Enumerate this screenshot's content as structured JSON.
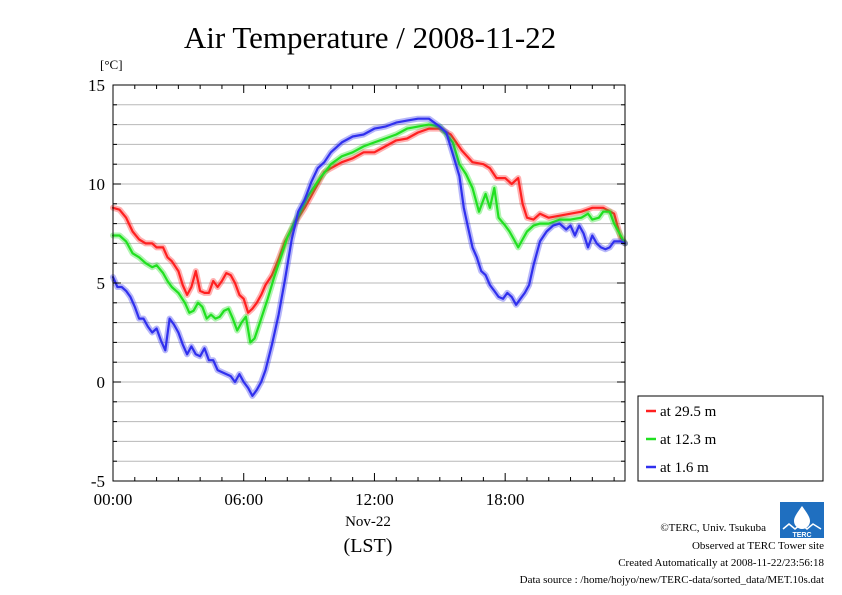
{
  "chart_data": {
    "type": "line",
    "title": "Air Temperature / 2008-11-22",
    "ylabel": "[°C]",
    "xlabel": "(LST)",
    "x_date_label": "Nov-22",
    "x_unit": "hours",
    "xlim": [
      0,
      23.5
    ],
    "ylim": [
      -5,
      15
    ],
    "x_ticks": [
      0,
      6,
      12,
      18
    ],
    "x_tick_labels": [
      "00:00",
      "06:00",
      "12:00",
      "18:00"
    ],
    "y_ticks": [
      -5,
      0,
      5,
      10,
      15
    ],
    "y_tick_labels": [
      "-5",
      "0",
      "5",
      "10",
      "15"
    ],
    "grid": true,
    "legend_position": "bottom-right outside",
    "series": [
      {
        "name": "at 29.5 m",
        "color": "#ff2020",
        "points": [
          [
            0,
            8.8
          ],
          [
            0.3,
            8.7
          ],
          [
            0.6,
            8.3
          ],
          [
            0.9,
            7.6
          ],
          [
            1.2,
            7.2
          ],
          [
            1.5,
            7.0
          ],
          [
            1.8,
            7.0
          ],
          [
            2.0,
            6.8
          ],
          [
            2.3,
            6.8
          ],
          [
            2.5,
            6.3
          ],
          [
            2.7,
            6.1
          ],
          [
            3.0,
            5.6
          ],
          [
            3.2,
            4.9
          ],
          [
            3.4,
            4.4
          ],
          [
            3.6,
            4.8
          ],
          [
            3.8,
            5.6
          ],
          [
            4.0,
            4.6
          ],
          [
            4.2,
            4.5
          ],
          [
            4.4,
            4.5
          ],
          [
            4.6,
            5.1
          ],
          [
            4.8,
            4.8
          ],
          [
            5.0,
            5.1
          ],
          [
            5.2,
            5.5
          ],
          [
            5.4,
            5.4
          ],
          [
            5.6,
            5.0
          ],
          [
            5.8,
            4.4
          ],
          [
            6.0,
            4.2
          ],
          [
            6.2,
            3.5
          ],
          [
            6.4,
            3.7
          ],
          [
            6.6,
            4.0
          ],
          [
            6.8,
            4.4
          ],
          [
            7.0,
            4.9
          ],
          [
            7.3,
            5.4
          ],
          [
            7.6,
            6.2
          ],
          [
            7.9,
            7.1
          ],
          [
            8.2,
            7.7
          ],
          [
            8.5,
            8.3
          ],
          [
            8.8,
            8.8
          ],
          [
            9.1,
            9.4
          ],
          [
            9.4,
            10.0
          ],
          [
            9.7,
            10.6
          ],
          [
            10.0,
            10.8
          ],
          [
            10.5,
            11.1
          ],
          [
            11.0,
            11.3
          ],
          [
            11.5,
            11.6
          ],
          [
            12.0,
            11.6
          ],
          [
            12.5,
            11.9
          ],
          [
            13.0,
            12.2
          ],
          [
            13.5,
            12.3
          ],
          [
            14.0,
            12.6
          ],
          [
            14.5,
            12.8
          ],
          [
            15.0,
            12.8
          ],
          [
            15.5,
            12.5
          ],
          [
            16.0,
            11.7
          ],
          [
            16.5,
            11.1
          ],
          [
            17.0,
            11.0
          ],
          [
            17.3,
            10.8
          ],
          [
            17.6,
            10.3
          ],
          [
            18.0,
            10.3
          ],
          [
            18.3,
            10.0
          ],
          [
            18.6,
            10.3
          ],
          [
            18.8,
            9.0
          ],
          [
            19.0,
            8.3
          ],
          [
            19.3,
            8.2
          ],
          [
            19.6,
            8.5
          ],
          [
            20.0,
            8.3
          ],
          [
            20.5,
            8.4
          ],
          [
            21.0,
            8.5
          ],
          [
            21.5,
            8.6
          ],
          [
            22.0,
            8.8
          ],
          [
            22.5,
            8.8
          ],
          [
            23.0,
            8.5
          ],
          [
            23.3,
            7.3
          ],
          [
            23.5,
            7.0
          ]
        ]
      },
      {
        "name": "at 12.3 m",
        "color": "#20e020",
        "points": [
          [
            0,
            7.4
          ],
          [
            0.3,
            7.4
          ],
          [
            0.6,
            7.1
          ],
          [
            0.9,
            6.5
          ],
          [
            1.2,
            6.3
          ],
          [
            1.5,
            6.0
          ],
          [
            1.8,
            5.8
          ],
          [
            2.0,
            5.9
          ],
          [
            2.3,
            5.5
          ],
          [
            2.5,
            5.1
          ],
          [
            2.7,
            4.8
          ],
          [
            3.0,
            4.5
          ],
          [
            3.3,
            4.0
          ],
          [
            3.5,
            3.5
          ],
          [
            3.7,
            3.6
          ],
          [
            3.9,
            4.0
          ],
          [
            4.1,
            3.8
          ],
          [
            4.3,
            3.2
          ],
          [
            4.5,
            3.4
          ],
          [
            4.7,
            3.2
          ],
          [
            4.9,
            3.3
          ],
          [
            5.1,
            3.6
          ],
          [
            5.3,
            3.7
          ],
          [
            5.5,
            3.2
          ],
          [
            5.7,
            2.6
          ],
          [
            5.9,
            3.0
          ],
          [
            6.1,
            3.3
          ],
          [
            6.3,
            2.0
          ],
          [
            6.5,
            2.2
          ],
          [
            6.8,
            3.2
          ],
          [
            7.1,
            4.2
          ],
          [
            7.4,
            5.3
          ],
          [
            7.7,
            6.3
          ],
          [
            8.0,
            7.3
          ],
          [
            8.3,
            8.0
          ],
          [
            8.6,
            8.6
          ],
          [
            8.9,
            9.3
          ],
          [
            9.2,
            9.8
          ],
          [
            9.5,
            10.3
          ],
          [
            9.8,
            10.7
          ],
          [
            10.0,
            11.0
          ],
          [
            10.5,
            11.4
          ],
          [
            11.0,
            11.6
          ],
          [
            11.5,
            11.9
          ],
          [
            12.0,
            12.1
          ],
          [
            12.5,
            12.3
          ],
          [
            13.0,
            12.5
          ],
          [
            13.5,
            12.8
          ],
          [
            14.0,
            12.9
          ],
          [
            14.5,
            13.0
          ],
          [
            15.0,
            12.9
          ],
          [
            15.3,
            12.5
          ],
          [
            15.6,
            12.1
          ],
          [
            15.9,
            11.0
          ],
          [
            16.2,
            10.5
          ],
          [
            16.5,
            9.8
          ],
          [
            16.8,
            8.6
          ],
          [
            17.1,
            9.5
          ],
          [
            17.3,
            8.8
          ],
          [
            17.5,
            9.8
          ],
          [
            17.7,
            8.3
          ],
          [
            18.0,
            7.9
          ],
          [
            18.2,
            7.6
          ],
          [
            18.4,
            7.2
          ],
          [
            18.6,
            6.8
          ],
          [
            18.8,
            7.2
          ],
          [
            19.0,
            7.6
          ],
          [
            19.3,
            7.9
          ],
          [
            19.6,
            8.0
          ],
          [
            20.0,
            8.0
          ],
          [
            20.5,
            8.2
          ],
          [
            21.0,
            8.2
          ],
          [
            21.5,
            8.3
          ],
          [
            21.8,
            8.5
          ],
          [
            22.0,
            8.2
          ],
          [
            22.3,
            8.3
          ],
          [
            22.5,
            8.6
          ],
          [
            22.8,
            8.6
          ],
          [
            23.0,
            8.0
          ],
          [
            23.3,
            7.4
          ],
          [
            23.5,
            7.0
          ]
        ]
      },
      {
        "name": "at 1.6 m",
        "color": "#3030ee",
        "points": [
          [
            0,
            5.3
          ],
          [
            0.2,
            4.8
          ],
          [
            0.4,
            4.8
          ],
          [
            0.6,
            4.6
          ],
          [
            0.8,
            4.3
          ],
          [
            1.0,
            3.8
          ],
          [
            1.2,
            3.2
          ],
          [
            1.4,
            3.2
          ],
          [
            1.6,
            2.8
          ],
          [
            1.8,
            2.5
          ],
          [
            2.0,
            2.7
          ],
          [
            2.2,
            2.1
          ],
          [
            2.4,
            1.6
          ],
          [
            2.6,
            3.2
          ],
          [
            2.8,
            2.9
          ],
          [
            3.0,
            2.5
          ],
          [
            3.2,
            1.9
          ],
          [
            3.4,
            1.4
          ],
          [
            3.6,
            1.8
          ],
          [
            3.8,
            1.4
          ],
          [
            4.0,
            1.3
          ],
          [
            4.2,
            1.7
          ],
          [
            4.4,
            1.1
          ],
          [
            4.6,
            1.1
          ],
          [
            4.8,
            0.6
          ],
          [
            5.0,
            0.5
          ],
          [
            5.2,
            0.4
          ],
          [
            5.4,
            0.3
          ],
          [
            5.6,
            0.0
          ],
          [
            5.8,
            0.4
          ],
          [
            6.0,
            0.0
          ],
          [
            6.2,
            -0.3
          ],
          [
            6.4,
            -0.7
          ],
          [
            6.6,
            -0.4
          ],
          [
            6.8,
            0.0
          ],
          [
            7.0,
            0.6
          ],
          [
            7.3,
            1.9
          ],
          [
            7.6,
            3.4
          ],
          [
            7.9,
            5.2
          ],
          [
            8.2,
            7.2
          ],
          [
            8.5,
            8.6
          ],
          [
            8.8,
            9.2
          ],
          [
            9.1,
            10.1
          ],
          [
            9.4,
            10.8
          ],
          [
            9.7,
            11.1
          ],
          [
            10.0,
            11.6
          ],
          [
            10.5,
            12.1
          ],
          [
            11.0,
            12.4
          ],
          [
            11.5,
            12.5
          ],
          [
            12.0,
            12.8
          ],
          [
            12.5,
            12.9
          ],
          [
            13.0,
            13.1
          ],
          [
            13.5,
            13.2
          ],
          [
            14.0,
            13.3
          ],
          [
            14.5,
            13.3
          ],
          [
            15.0,
            12.9
          ],
          [
            15.3,
            12.6
          ],
          [
            15.6,
            11.5
          ],
          [
            15.9,
            10.4
          ],
          [
            16.1,
            8.8
          ],
          [
            16.3,
            7.8
          ],
          [
            16.5,
            6.8
          ],
          [
            16.7,
            6.3
          ],
          [
            16.9,
            5.6
          ],
          [
            17.1,
            5.4
          ],
          [
            17.3,
            4.9
          ],
          [
            17.5,
            4.6
          ],
          [
            17.7,
            4.3
          ],
          [
            17.9,
            4.2
          ],
          [
            18.1,
            4.5
          ],
          [
            18.3,
            4.3
          ],
          [
            18.5,
            3.9
          ],
          [
            18.7,
            4.2
          ],
          [
            18.9,
            4.5
          ],
          [
            19.1,
            4.9
          ],
          [
            19.3,
            5.9
          ],
          [
            19.6,
            7.1
          ],
          [
            19.9,
            7.6
          ],
          [
            20.2,
            7.9
          ],
          [
            20.5,
            8.0
          ],
          [
            20.8,
            7.7
          ],
          [
            21.0,
            7.9
          ],
          [
            21.2,
            7.4
          ],
          [
            21.4,
            7.9
          ],
          [
            21.6,
            7.5
          ],
          [
            21.8,
            6.8
          ],
          [
            22.0,
            7.4
          ],
          [
            22.2,
            7.0
          ],
          [
            22.4,
            6.8
          ],
          [
            22.6,
            6.7
          ],
          [
            22.8,
            6.8
          ],
          [
            23.0,
            7.1
          ],
          [
            23.3,
            7.1
          ],
          [
            23.5,
            7.0
          ]
        ]
      }
    ]
  },
  "credits": {
    "copyright": "©TERC, Univ. Tsukuba",
    "site": "Observed at TERC Tower site",
    "created": "Created Automatically at 2008-11-22/23:56:18",
    "source": "Data source : /home/hojyo/new/TERC-data/sorted_data/MET.10s.dat"
  },
  "logo": {
    "text": "TERC",
    "color": "#1f6fc0"
  }
}
